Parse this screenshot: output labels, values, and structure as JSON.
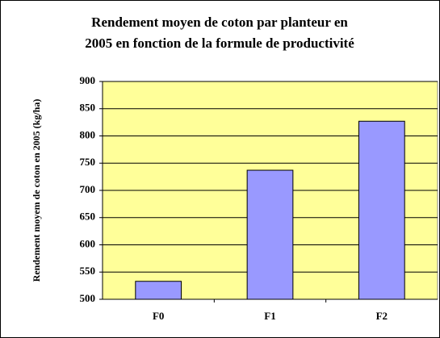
{
  "chart_data": {
    "type": "bar",
    "title": [
      "Rendement moyen de coton par planteur en",
      "2005 en fonction de la formule de productivité"
    ],
    "y_label": "Rendement moyem de coton en 2005 (kg/ha)",
    "categories": [
      "F0",
      "F1",
      "F2"
    ],
    "values": [
      533,
      737,
      827
    ],
    "color": "#9999ff",
    "ylim": [
      500,
      900
    ],
    "yticks": [
      500,
      550,
      600,
      650,
      700,
      750,
      800,
      850,
      900
    ],
    "grid": true
  }
}
